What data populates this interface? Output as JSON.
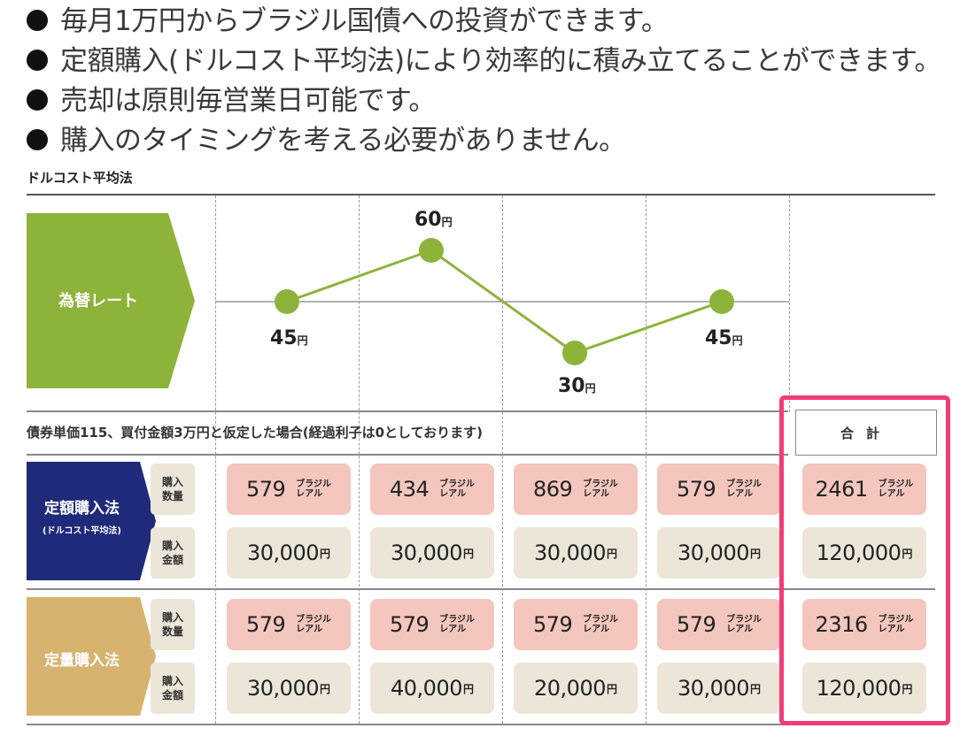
{
  "bullets": [
    "毎月1万円からブラジル国債への投資ができます。",
    "定額購入(ドルコスト平均法)により効率的に積み立てることができます。",
    "売却は原則毎営業日可能です。",
    "購入のタイミングを考える必要がありません。"
  ],
  "subhead": "ドルコスト平均法",
  "rate_label": "為替レート",
  "yen_unit": "円",
  "chart_data": {
    "type": "line",
    "x": [
      1,
      2,
      3,
      4
    ],
    "values": [
      45,
      60,
      30,
      45
    ],
    "data_labels": [
      "45",
      "60",
      "30",
      "45"
    ],
    "grid": true,
    "color": "#8db33a"
  },
  "note": "債券単価115、買付金額3万円と仮定した場合(経過利子は0としております)",
  "total_header": "合計",
  "unit_real": [
    "ブラジル",
    "レアル"
  ],
  "qty_label": [
    "購入",
    "数量"
  ],
  "amt_label": [
    "購入",
    "金額"
  ],
  "methods": [
    {
      "name": "定額購入法",
      "sub": "(ドルコスト平均法)",
      "color": "#1f2a7a",
      "quantities": [
        "579",
        "434",
        "869",
        "579"
      ],
      "amounts": [
        "30,000",
        "30,000",
        "30,000",
        "30,000"
      ],
      "total_qty": "2461",
      "total_amt": "120,000"
    },
    {
      "name": "定量購入法",
      "sub": "",
      "color": "#d7b36f",
      "quantities": [
        "579",
        "579",
        "579",
        "579"
      ],
      "amounts": [
        "30,000",
        "40,000",
        "20,000",
        "30,000"
      ],
      "total_qty": "2316",
      "total_amt": "120,000"
    }
  ],
  "highlight_color": "#f23c7a"
}
